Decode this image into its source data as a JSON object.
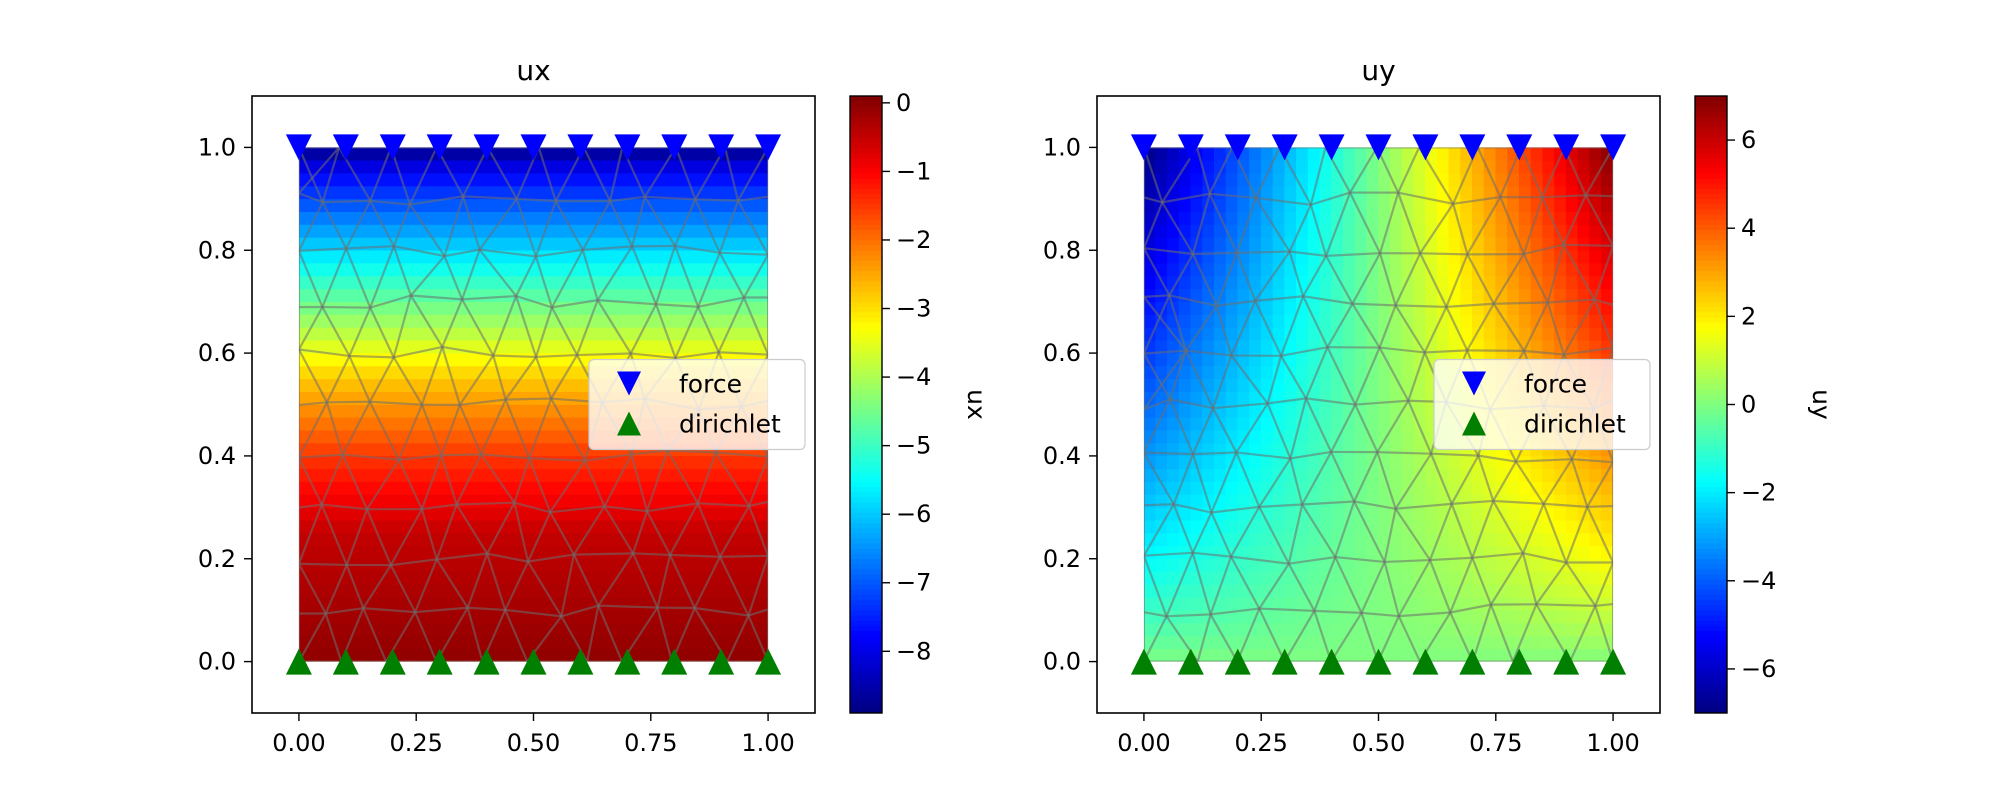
{
  "colors": {
    "force_marker": "#0000ff",
    "dirichlet_marker": "#007f00",
    "colormap": "jet",
    "mesh_edges": "#6e6e6e"
  },
  "chart_data": [
    {
      "type": "heatmap",
      "title": "ux",
      "xlabel": "",
      "ylabel": "",
      "xlim": [
        -0.1,
        1.1
      ],
      "ylim": [
        -0.1,
        1.1
      ],
      "xticks": [
        "0.00",
        "0.25",
        "0.50",
        "0.75",
        "1.00"
      ],
      "yticks": [
        "0.0",
        "0.2",
        "0.4",
        "0.6",
        "0.8",
        "1.0"
      ],
      "field": "vertical gradient: approx 0 at y=0, -1.5 at y=0.4, -4 at y=0.65, -9 at y=1.0",
      "colorbar": {
        "label": "ux",
        "range": [
          -8.9,
          0.1
        ],
        "ticks": [
          "0",
          "−1",
          "−2",
          "−3",
          "−4",
          "−5",
          "−6",
          "−7",
          "−8"
        ]
      },
      "legend": {
        "placement": "center-right",
        "entries": [
          "force",
          "dirichlet"
        ]
      },
      "series": [
        {
          "name": "force",
          "marker": "triangle-down",
          "x": [
            0,
            0.1,
            0.2,
            0.3,
            0.4,
            0.5,
            0.6,
            0.7,
            0.8,
            0.9,
            1.0
          ],
          "y": [
            1,
            1,
            1,
            1,
            1,
            1,
            1,
            1,
            1,
            1,
            1
          ]
        },
        {
          "name": "dirichlet",
          "marker": "triangle-up",
          "x": [
            0,
            0.1,
            0.2,
            0.3,
            0.4,
            0.5,
            0.6,
            0.7,
            0.8,
            0.9,
            1.0
          ],
          "y": [
            0,
            0,
            0,
            0,
            0,
            0,
            0,
            0,
            0,
            0,
            0
          ]
        }
      ]
    },
    {
      "type": "heatmap",
      "title": "uy",
      "xlabel": "",
      "ylabel": "",
      "xlim": [
        -0.1,
        1.1
      ],
      "ylim": [
        -0.1,
        1.1
      ],
      "xticks": [
        "0.00",
        "0.25",
        "0.50",
        "0.75",
        "1.00"
      ],
      "yticks": [
        "0.0",
        "0.2",
        "0.4",
        "0.6",
        "0.8",
        "1.0"
      ],
      "field": "approx 0 along y=0, increasing left-to-right with height: about -7 at top-left, +7 at top-right",
      "colorbar": {
        "label": "uy",
        "range": [
          -7,
          7
        ],
        "ticks": [
          "6",
          "4",
          "2",
          "0",
          "−2",
          "−4",
          "−6"
        ]
      },
      "legend": {
        "placement": "center-right",
        "entries": [
          "force",
          "dirichlet"
        ]
      },
      "series": [
        {
          "name": "force",
          "marker": "triangle-down",
          "x": [
            0,
            0.1,
            0.2,
            0.3,
            0.4,
            0.5,
            0.6,
            0.7,
            0.8,
            0.9,
            1.0
          ],
          "y": [
            1,
            1,
            1,
            1,
            1,
            1,
            1,
            1,
            1,
            1,
            1
          ]
        },
        {
          "name": "dirichlet",
          "marker": "triangle-up",
          "x": [
            0,
            0.1,
            0.2,
            0.3,
            0.4,
            0.5,
            0.6,
            0.7,
            0.8,
            0.9,
            1.0
          ],
          "y": [
            0,
            0,
            0,
            0,
            0,
            0,
            0,
            0,
            0,
            0,
            0
          ]
        }
      ]
    }
  ]
}
